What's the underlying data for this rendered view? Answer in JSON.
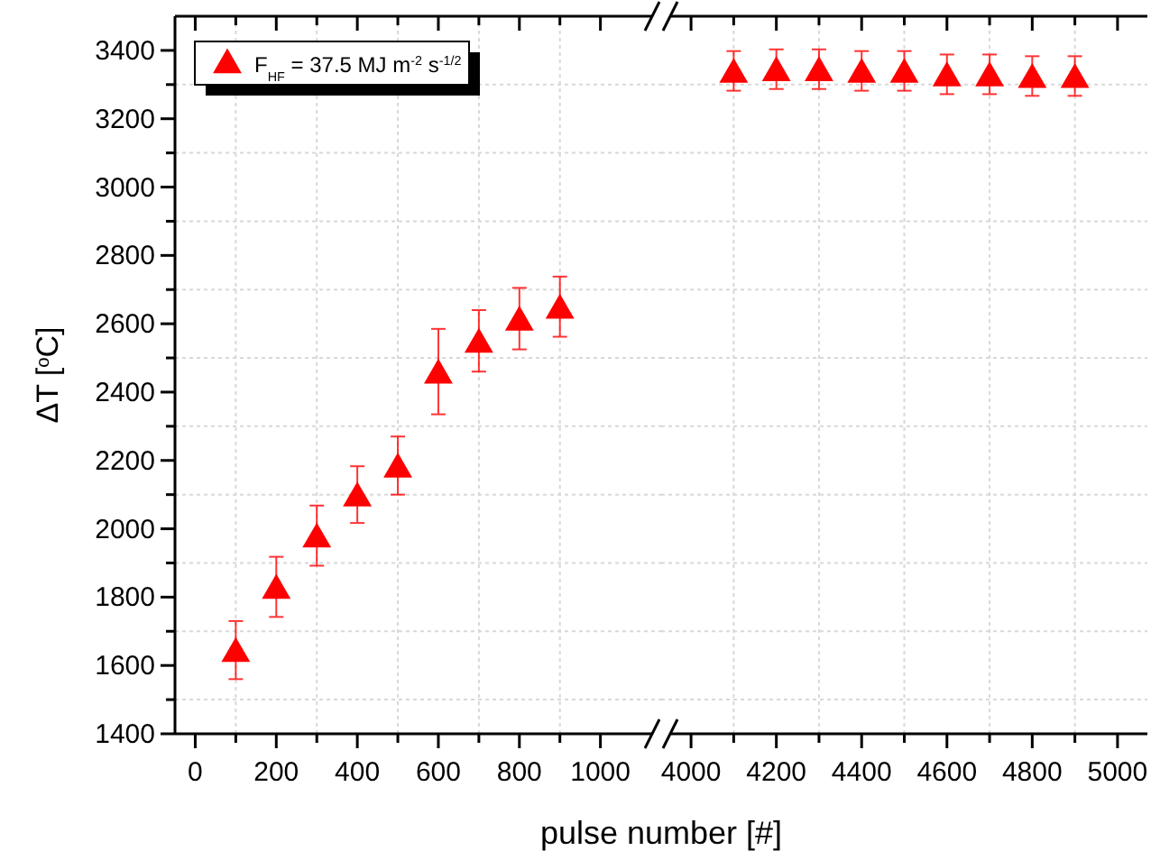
{
  "chart_data": [
    {
      "type": "scatter",
      "xlabel": "pulse number [#]",
      "ylabel": "ΔT [$^{o}$C]",
      "xlim": [
        -50,
        1150
      ],
      "ylim": [
        1400,
        3500
      ],
      "xticks": [
        0,
        {
          "value": 100,
          "label": null
        },
        200,
        {
          "value": 300,
          "label": null
        },
        400,
        {
          "value": 500,
          "label": null
        },
        600,
        {
          "value": 700,
          "label": null
        },
        800,
        {
          "value": 900,
          "label": null
        },
        1000
      ],
      "yticks": [
        1400,
        {
          "value": 1500,
          "label": null
        },
        1600,
        {
          "value": 1700,
          "label": null
        },
        1800,
        {
          "value": 1900,
          "label": null
        },
        2000,
        {
          "value": 2100,
          "label": null
        },
        2200,
        {
          "value": 2300,
          "label": null
        },
        2400,
        {
          "value": 2500,
          "label": null
        },
        2600,
        {
          "value": 2700,
          "label": null
        },
        2800,
        {
          "value": 2900,
          "label": null
        },
        3000,
        {
          "value": 3100,
          "label": null
        },
        3200,
        {
          "value": 3300,
          "label": null
        },
        3400
      ],
      "grid": true,
      "legend": "top left",
      "marker": "triangle",
      "series": [
        {
          "name": "F$_{HF}$ = 37.5 MJ m$^{-2}$ s$^{-1/2}$",
          "color": "#ff0000",
          "x": [
            100,
            200,
            300,
            400,
            500,
            600,
            700,
            800,
            900
          ],
          "values": [
            1645,
            1830,
            1980,
            2100,
            2185,
            2460,
            2550,
            2615,
            2650
          ],
          "errors": [
            85,
            88,
            88,
            83,
            85,
            125,
            90,
            90,
            88
          ]
        }
      ]
    },
    {
      "type": "scatter",
      "xlim": [
        3930,
        5070
      ],
      "ylim": [
        1400,
        3500
      ],
      "tick_labels": "x",
      "xticks": [
        4000,
        {
          "value": 4100,
          "label": null
        },
        4200,
        {
          "value": 4300,
          "label": null
        },
        4400,
        {
          "value": 4500,
          "label": null
        },
        4600,
        {
          "value": 4700,
          "label": null
        },
        4800,
        {
          "value": 4900,
          "label": null
        },
        5000
      ],
      "yticks": [
        1400,
        {
          "value": 1500,
          "label": null
        },
        1600,
        {
          "value": 1700,
          "label": null
        },
        1800,
        {
          "value": 1900,
          "label": null
        },
        2000,
        {
          "value": 2100,
          "label": null
        },
        2200,
        {
          "value": 2300,
          "label": null
        },
        2400,
        {
          "value": 2500,
          "label": null
        },
        2600,
        {
          "value": 2700,
          "label": null
        },
        2800,
        {
          "value": 2900,
          "label": null
        },
        3000,
        {
          "value": 3100,
          "label": null
        },
        3200,
        {
          "value": 3300,
          "label": null
        },
        3400
      ],
      "grid": true,
      "marker": "triangle",
      "series": [
        {
          "color": "#ff0000",
          "x": [
            4100,
            4200,
            4300,
            4400,
            4500,
            4600,
            4700,
            4800,
            4900
          ],
          "values": [
            3340,
            3345,
            3345,
            3340,
            3340,
            3330,
            3330,
            3325,
            3325
          ],
          "errors": [
            58,
            58,
            58,
            58,
            58,
            58,
            58,
            58,
            58
          ]
        }
      ]
    }
  ]
}
